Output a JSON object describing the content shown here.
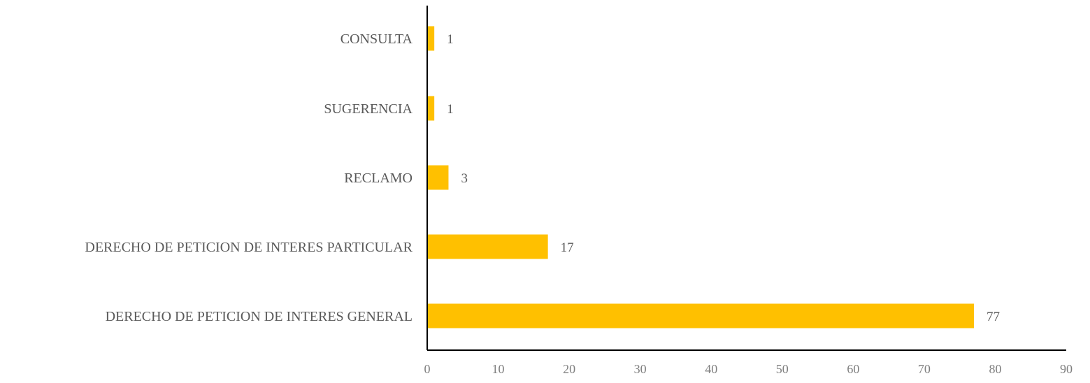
{
  "chart_data": {
    "type": "bar",
    "orientation": "horizontal",
    "categories": [
      "CONSULTA",
      "SUGERENCIA",
      "RECLAMO",
      "DERECHO DE PETICION DE INTERES PARTICULAR",
      "DERECHO DE PETICION DE INTERES GENERAL"
    ],
    "values": [
      1,
      1,
      3,
      17,
      77
    ],
    "data_labels": [
      "1",
      "1",
      "3",
      "17",
      "77"
    ],
    "xlim": [
      0,
      90
    ],
    "x_ticks": [
      0,
      10,
      20,
      30,
      40,
      50,
      60,
      70,
      80,
      90
    ],
    "x_tick_labels": [
      "0",
      "10",
      "20",
      "30",
      "40",
      "50",
      "60",
      "70",
      "80",
      "90"
    ],
    "title": "",
    "xlabel": "",
    "ylabel": "",
    "grid": false,
    "legend": "none",
    "bar_color": "#FFC000",
    "axis_color": "#000000"
  }
}
